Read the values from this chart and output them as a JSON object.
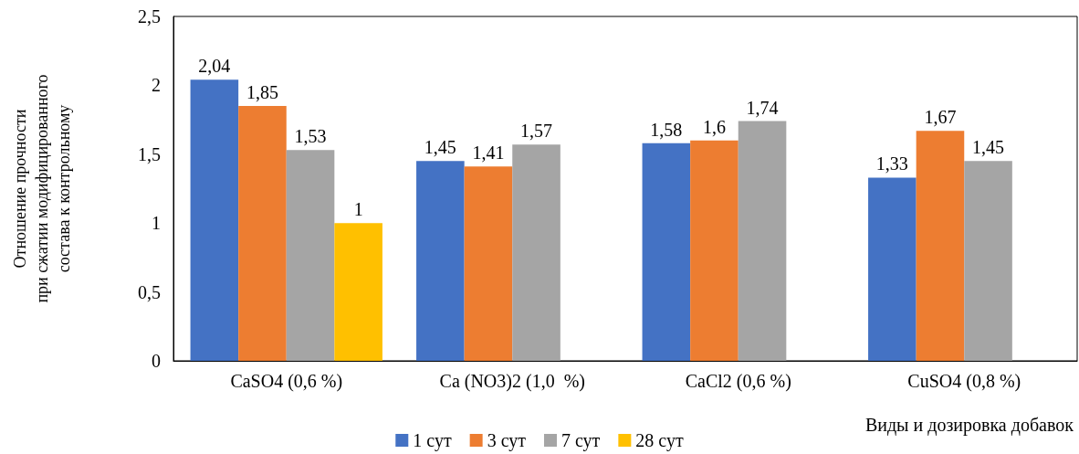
{
  "chart_data": {
    "type": "bar",
    "xlabel": "Виды и дозировка добавок",
    "ylabel": "Отношение прочности\nпри сжатии модифицированного\nсостава к контрольному",
    "categories": [
      "CaSO4 (0,6 %)",
      "Ca (NO3)2 (1,0  %)",
      "CaCl2 (0,6 %)",
      "CuSO4 (0,8 %)"
    ],
    "series": [
      {
        "name": "1 сут",
        "color": "#4472c4",
        "values": [
          2.04,
          1.45,
          1.58,
          1.33
        ],
        "value_labels": [
          "2,04",
          "1,45",
          "1,58",
          "1,33"
        ]
      },
      {
        "name": "3 сут",
        "color": "#ed7d31",
        "values": [
          1.85,
          1.41,
          1.6,
          1.67
        ],
        "value_labels": [
          "1,85",
          "1,41",
          "1,6",
          "1,67"
        ]
      },
      {
        "name": "7 сут",
        "color": "#a5a5a5",
        "values": [
          1.53,
          1.57,
          1.74,
          1.45
        ],
        "value_labels": [
          "1,53",
          "1,57",
          "1,74",
          "1,45"
        ]
      },
      {
        "name": "28 сут",
        "color": "#ffc000",
        "values": [
          1,
          null,
          null,
          null
        ],
        "value_labels": [
          "1",
          null,
          null,
          null
        ]
      }
    ],
    "ylim": [
      0,
      2.5
    ],
    "yticks": [
      0,
      {
        "value": 0.5,
        "label": "0,5"
      },
      1,
      {
        "value": 1.5,
        "label": "1,5"
      },
      2,
      {
        "value": 2.5,
        "label": "2,5"
      }
    ],
    "grid": false,
    "legend": "bottom"
  }
}
